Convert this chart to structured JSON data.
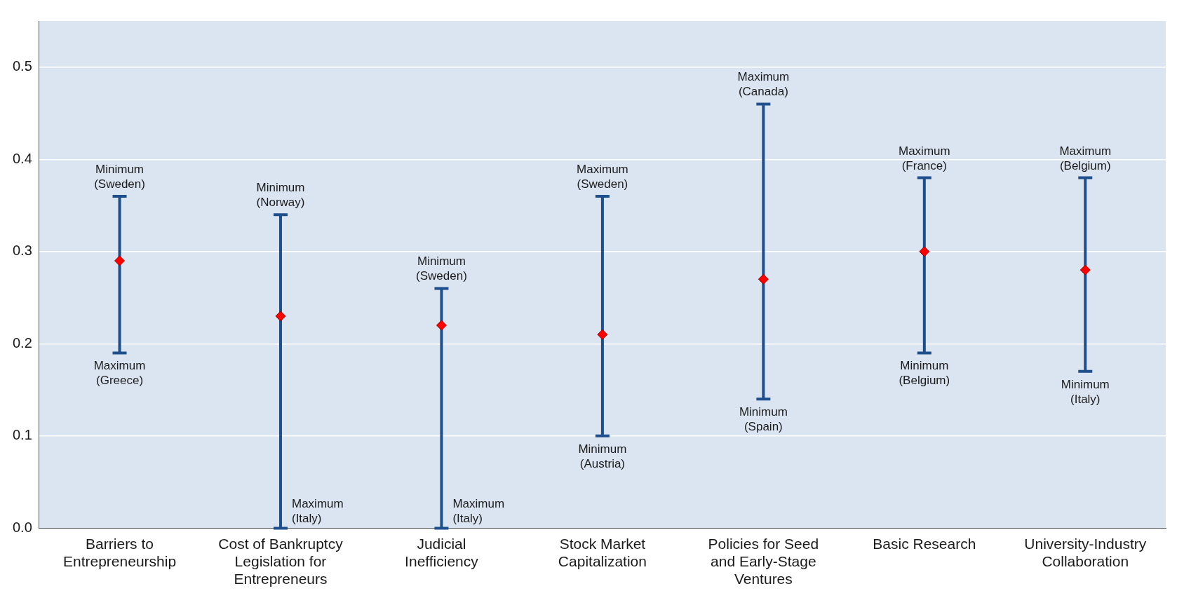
{
  "chart_data": {
    "type": "scatter",
    "categories": [
      "Barriers to Entrepreneurship",
      "Cost of Bankruptcy Legislation for Entrepreneurs",
      "Judicial Inefficiency",
      "Stock Market Capitalization",
      "Policies for Seed and Early-Stage Ventures",
      "Basic Research",
      "University-Industry Collaboration"
    ],
    "series": [
      {
        "color": "#ff0000",
        "values": [
          0.29,
          0.23,
          0.22,
          0.21,
          0.27,
          0.3,
          0.28
        ],
        "errors": [
          [
            0.19,
            0.36
          ],
          [
            0,
            0.34
          ],
          [
            0,
            0.26
          ],
          [
            0.1,
            0.36
          ],
          [
            0.14,
            0.46
          ],
          [
            0.19,
            0.38
          ],
          [
            0.17,
            0.38
          ]
        ]
      }
    ],
    "marker": "diamond",
    "ylim": [
      0,
      0.55
    ],
    "yticks": [
      {
        "value": 0,
        "label": "0.0"
      },
      {
        "value": 0.1,
        "label": "0.1"
      },
      {
        "value": 0.2,
        "label": "0.2"
      },
      {
        "value": 0.3,
        "label": "0.3"
      },
      {
        "value": 0.4,
        "label": "0.4"
      },
      {
        "value": 0.5,
        "label": "0.5"
      }
    ],
    "grid": "y",
    "legend": false,
    "annotations": [
      {
        "text": "Minimum\n(Sweden)",
        "x": "Barriers to Entrepreneurship",
        "y": 0.36
      },
      {
        "text": "Maximum\n(Greece)",
        "x": "Barriers to Entrepreneurship",
        "y": 0.19
      },
      {
        "text": "Minimum\n(Norway)",
        "x": "Cost of Bankruptcy Legislation for Entrepreneurs",
        "y": 0.34
      },
      {
        "text": "Maximum\n(Italy)",
        "x": "Cost of Bankruptcy Legislation for Entrepreneurs",
        "y": 0
      },
      {
        "text": "Minimum\n(Sweden)",
        "x": "Judicial Inefficiency",
        "y": 0.26
      },
      {
        "text": "Maximum\n(Italy)",
        "x": "Judicial Inefficiency",
        "y": 0
      },
      {
        "text": "Maximum\n(Sweden)",
        "x": "Stock Market Capitalization",
        "y": 0.36
      },
      {
        "text": "Minimum\n(Austria)",
        "x": "Stock Market Capitalization",
        "y": 0.1
      },
      {
        "text": "Maximum\n(Canada)",
        "x": "Policies for Seed and Early-Stage Ventures",
        "y": 0.46
      },
      {
        "text": "Minimum\n(Spain)",
        "x": "Policies for Seed and Early-Stage Ventures",
        "y": 0.14
      },
      {
        "text": "Maximum\n(France)",
        "x": "Basic Research",
        "y": 0.38
      },
      {
        "text": "Minimum\n(Belgium)",
        "x": "Basic Research",
        "y": 0.19
      },
      {
        "text": "Maximum\n(Belgium)",
        "x": "University-Industry Collaboration",
        "y": 0.38
      },
      {
        "text": "Minimum\n(Italy)",
        "x": "University-Industry Collaboration",
        "y": 0.17
      }
    ]
  }
}
